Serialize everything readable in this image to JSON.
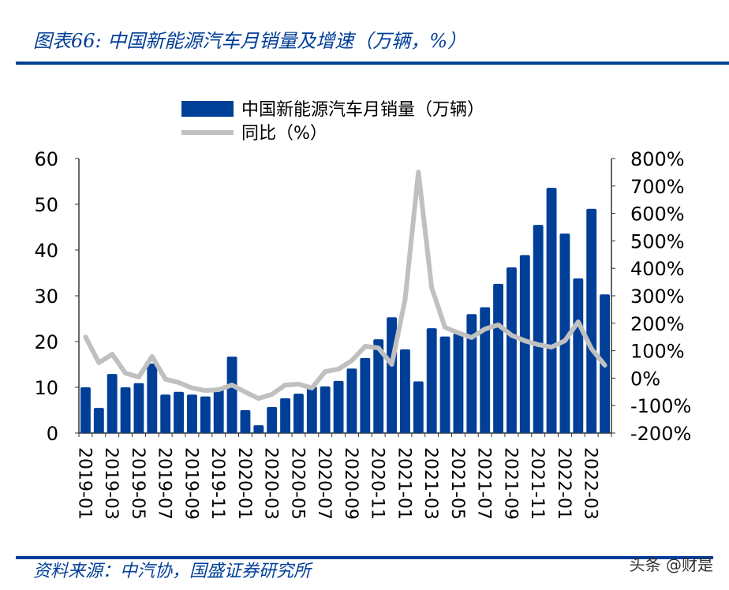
{
  "header": {
    "title": "图表66:  中国新能源汽车月销量及增速（万辆，%）"
  },
  "footer": {
    "source": "资料来源：中汽协，国盛证券研究所",
    "watermark": "头条 @财是"
  },
  "chart_data": {
    "type": "bar+line",
    "title": "图表66:  中国新能源汽车月销量及增速（万辆，%）",
    "legend_position": "top-center",
    "categories": [
      "2019-01",
      "2019-02",
      "2019-03",
      "2019-04",
      "2019-05",
      "2019-06",
      "2019-07",
      "2019-08",
      "2019-09",
      "2019-10",
      "2019-11",
      "2019-12",
      "2020-01",
      "2020-02",
      "2020-03",
      "2020-04",
      "2020-05",
      "2020-06",
      "2020-07",
      "2020-08",
      "2020-09",
      "2020-10",
      "2020-11",
      "2020-12",
      "2021-01",
      "2021-02",
      "2021-03",
      "2021-04",
      "2021-05",
      "2021-06",
      "2021-07",
      "2021-08",
      "2021-09",
      "2021-10",
      "2021-11",
      "2021-12",
      "2022-01",
      "2022-02",
      "2022-03",
      "2022-04"
    ],
    "x_tick_labels": [
      "2019-01",
      "2019-03",
      "2019-05",
      "2019-07",
      "2019-09",
      "2019-11",
      "2020-01",
      "2020-03",
      "2020-05",
      "2020-07",
      "2020-09",
      "2020-11",
      "2021-01",
      "2021-03",
      "2021-05",
      "2021-07",
      "2021-09",
      "2021-11",
      "2022-01",
      "2022-03"
    ],
    "series": [
      {
        "name": "中国新能源汽车月销量（万辆）",
        "type": "bar",
        "axis": "left",
        "color": "#003f98",
        "values": [
          10.0,
          5.5,
          12.9,
          10.0,
          10.9,
          15.2,
          8.4,
          9.0,
          8.4,
          8.0,
          9.8,
          16.7,
          5.0,
          1.7,
          5.7,
          7.6,
          8.6,
          10.1,
          10.2,
          11.4,
          14.1,
          16.4,
          20.5,
          25.3,
          18.3,
          11.3,
          22.9,
          21.1,
          21.7,
          26.0,
          27.5,
          32.6,
          36.2,
          38.9,
          45.5,
          53.6,
          43.6,
          33.8,
          49.0,
          30.3
        ]
      },
      {
        "name": "同比（%）",
        "type": "line",
        "axis": "right",
        "color": "#c0c0c0",
        "values": [
          150,
          56,
          87,
          18,
          4,
          79,
          -4,
          -16,
          -36,
          -45,
          -42,
          -25,
          -51,
          -74,
          -59,
          -25,
          -22,
          -36,
          24,
          33,
          64,
          116,
          110,
          50,
          286,
          751,
          329,
          185,
          165,
          148,
          179,
          194,
          156,
          136,
          122,
          113,
          136,
          205,
          107,
          47
        ]
      }
    ],
    "y_left": {
      "range": [
        0,
        60
      ],
      "ticks": [
        "0",
        "10",
        "20",
        "30",
        "40",
        "50",
        "60"
      ]
    },
    "y_right": {
      "range": [
        -200,
        800
      ],
      "ticks": [
        "-200%",
        "-100%",
        "0%",
        "100%",
        "200%",
        "300%",
        "400%",
        "500%",
        "600%",
        "700%",
        "800%"
      ]
    }
  }
}
